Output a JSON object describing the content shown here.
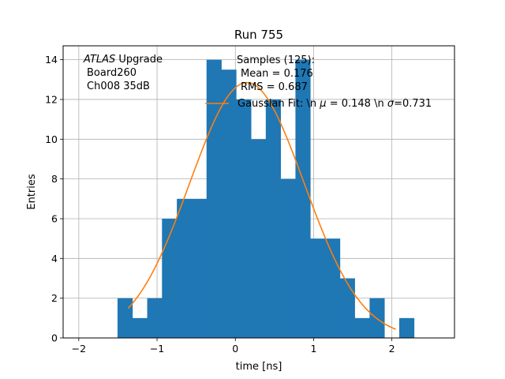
{
  "chart_data": {
    "type": "bar",
    "title": "Run 755",
    "xlabel": "time [ns]",
    "ylabel": "Entries",
    "xlim": [
      -2.2,
      2.8
    ],
    "ylim": [
      0,
      14.7
    ],
    "grid": true,
    "xticks": [
      -2,
      -1,
      0,
      1,
      2
    ],
    "xtick_labels": [
      "−2",
      "−1",
      "0",
      "1",
      "2"
    ],
    "yticks": [
      0,
      2,
      4,
      6,
      8,
      10,
      12,
      14
    ],
    "ytick_labels": [
      "0",
      "2",
      "4",
      "6",
      "8",
      "10",
      "12",
      "14"
    ],
    "bar_color": "#1f77b4",
    "fit_color": "#ff7f0e",
    "histogram": {
      "bin_edges": [
        -1.505,
        -1.315,
        -1.126,
        -0.937,
        -0.747,
        -0.558,
        -0.368,
        -0.179,
        0.01,
        0.2,
        0.389,
        0.578,
        0.768,
        0.957,
        1.147,
        1.336,
        1.525,
        1.715,
        1.904,
        2.094,
        2.283
      ],
      "counts": [
        2,
        1,
        2,
        6,
        7,
        7,
        14,
        13.5,
        12,
        10,
        12,
        8,
        14,
        5,
        5,
        3,
        1,
        2,
        0,
        1
      ]
    },
    "fit": {
      "name": "Gaussian Fit",
      "mu": 0.148,
      "sigma": 0.731,
      "amplitude": 12.85,
      "x_range": [
        -1.37,
        2.05
      ]
    },
    "legend": {
      "placement": "top-right",
      "entry": "Gaussian Fit: \\n $\\mu$ = 0.148 \\n $\\sigma$=0.731",
      "entry_prefix": "Gaussian Fit: \\n ",
      "entry_mu": "μ",
      "entry_middle": " = 0.148 \\n ",
      "entry_sigma": "σ",
      "entry_suffix": "=0.731"
    },
    "annotations": {
      "atlas_italic": "ATLAS",
      "atlas_rest": " Upgrade",
      "board": "Board260",
      "channel": "Ch008 35dB",
      "samples_line": "Samples (125):",
      "mean_line": "Mean = 0.176",
      "rms_line": "RMS = 0.687"
    }
  }
}
